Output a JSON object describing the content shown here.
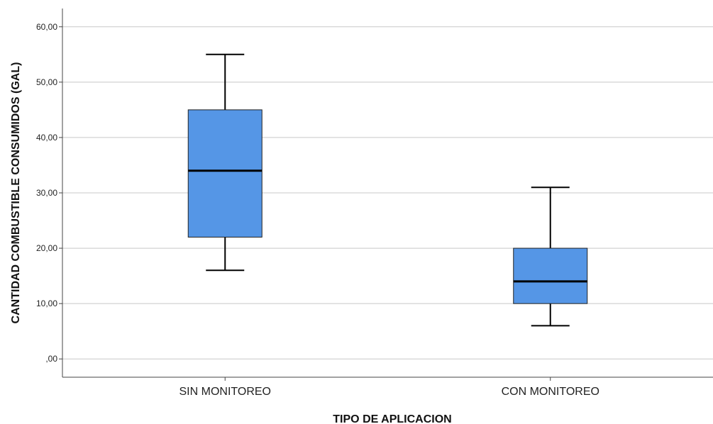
{
  "chart_data": {
    "type": "boxplot",
    "xlabel": "TIPO DE APLICACION",
    "ylabel": "CANTIDAD COMBUSTIBLE CONSUMIDOS   (GAL)",
    "ylim": [
      -3.3,
      63.3
    ],
    "yticks": [
      0,
      10,
      20,
      30,
      40,
      50,
      60
    ],
    "ytick_labels": [
      ",00",
      "10,00",
      "20,00",
      "30,00",
      "40,00",
      "50,00",
      "60,00"
    ],
    "grid": true,
    "categories": [
      "SIN MONITOREO",
      "CON MONITOREO"
    ],
    "boxes": [
      {
        "category": "SIN MONITOREO",
        "min": 16,
        "q1": 22,
        "median": 34,
        "q3": 45,
        "max": 55
      },
      {
        "category": "CON MONITOREO",
        "min": 6,
        "q1": 10,
        "median": 14,
        "q3": 20,
        "max": 31
      }
    ],
    "box_color": "#5596e6"
  }
}
